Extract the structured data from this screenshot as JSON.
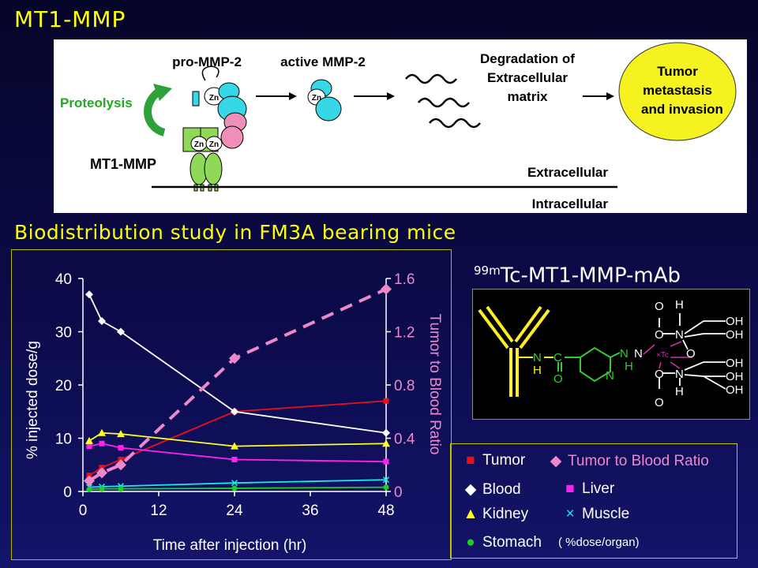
{
  "slide": {
    "title": "MT1-MMP",
    "section_title": "Biodistribution study in FM3A bearing mice"
  },
  "diagram": {
    "pro_label": "pro-MMP-2",
    "active_label": "active MMP-2",
    "proteolysis_label": "Proteolysis",
    "mt1_label": "MT1-MMP",
    "degradation_lines": [
      "Degradation of",
      "Extracellular",
      "matrix"
    ],
    "tumor_lines": [
      "Tumor",
      "metastasis",
      "and invasion"
    ],
    "extracellular_label": "Extracellular",
    "intracellular_label": "Intracellular",
    "zn_label": "Zn"
  },
  "compound": {
    "title_sup": "99m",
    "title_main": "Tc-MT1-MMP-mAb",
    "atoms": {
      "N": "N",
      "H": "H",
      "C": "C",
      "O": "O",
      "OH": "OH",
      "tc": "×Tc"
    }
  },
  "legend": {
    "tumor": "Tumor",
    "ratio": "Tumor to Blood Ratio",
    "blood": "Blood",
    "liver": "Liver",
    "kidney": "Kidney",
    "muscle": "Muscle",
    "stomach": "Stomach",
    "stomach_note": "( %dose/organ)"
  },
  "colors": {
    "title": "#ffff00",
    "tumor": "#e8101a",
    "blood": "#ffffff",
    "liver": "#ff22ee",
    "kidney": "#ffff22",
    "muscle": "#18e8e8",
    "stomach": "#22cc22",
    "ratio": "#ee88cc",
    "proteolysis": "#22aa22",
    "tumor_circle": "#f6f220"
  },
  "chart_data": {
    "type": "line",
    "xlabel": "Time after injection (hr)",
    "ylabel": "% injected dose/g",
    "y2label": "Tumor to Blood Ratio",
    "xlim": [
      0,
      48
    ],
    "ylim": [
      0,
      40
    ],
    "y2lim": [
      0,
      1.6
    ],
    "x_ticks": [
      "0",
      "12",
      "24",
      "36",
      "48"
    ],
    "y_ticks": [
      "0",
      "10",
      "20",
      "30",
      "40"
    ],
    "y2_ticks": [
      "0",
      "0.4",
      "0.8",
      "1.2",
      "1.6"
    ],
    "series": [
      {
        "name": "Tumor",
        "axis": "left",
        "marker": "square",
        "color": "#e8101a",
        "x": [
          1,
          3,
          6,
          24,
          48
        ],
        "y": [
          3.0,
          4.5,
          6.0,
          15.0,
          17.0
        ]
      },
      {
        "name": "Blood",
        "axis": "left",
        "marker": "diamond",
        "color": "#ffffff",
        "x": [
          1,
          3,
          6,
          24,
          48
        ],
        "y": [
          37.0,
          32.0,
          30.0,
          15.0,
          11.0
        ]
      },
      {
        "name": "Liver",
        "axis": "left",
        "marker": "square",
        "color": "#ff22ee",
        "x": [
          1,
          3,
          6,
          24,
          48
        ],
        "y": [
          8.5,
          9.0,
          8.2,
          6.0,
          5.6
        ]
      },
      {
        "name": "Kidney",
        "axis": "left",
        "marker": "triangle",
        "color": "#ffff22",
        "x": [
          1,
          3,
          6,
          24,
          48
        ],
        "y": [
          9.5,
          11.0,
          10.8,
          8.5,
          9.0
        ]
      },
      {
        "name": "Muscle",
        "axis": "left",
        "marker": "cross",
        "color": "#18e8e8",
        "x": [
          1,
          3,
          6,
          24,
          48
        ],
        "y": [
          0.8,
          0.9,
          1.0,
          1.6,
          2.2
        ]
      },
      {
        "name": "Stomach",
        "axis": "left",
        "marker": "circle",
        "color": "#22cc22",
        "x": [
          1,
          3,
          6,
          24,
          48
        ],
        "y": [
          0.4,
          0.5,
          0.5,
          0.6,
          0.8
        ]
      },
      {
        "name": "Tumor to Blood Ratio",
        "axis": "right",
        "marker": "diamond",
        "color": "#ee88cc",
        "dashed": true,
        "x": [
          1,
          3,
          6,
          24,
          48
        ],
        "y": [
          0.08,
          0.14,
          0.2,
          1.0,
          1.52
        ]
      }
    ]
  }
}
